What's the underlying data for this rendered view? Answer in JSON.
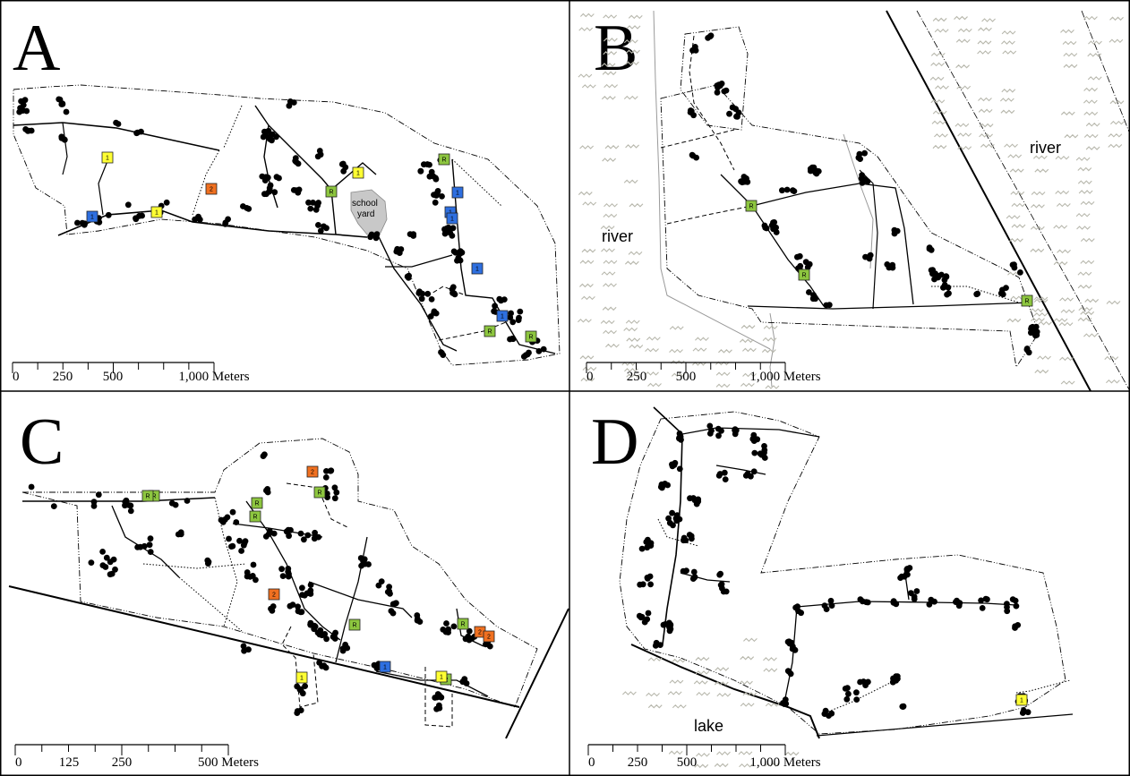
{
  "panels": [
    {
      "id": "A",
      "letter": "A",
      "labels": [
        {
          "text": "school",
          "kind": "feature"
        },
        {
          "text": "yard",
          "kind": "feature"
        }
      ],
      "scalebar": {
        "ticks": [
          "0",
          "250",
          "500"
        ],
        "end_label": "1,000 Meters"
      },
      "markers": [
        {
          "label": "1",
          "color": "#ffff33"
        },
        {
          "label": "1",
          "color": "#ffff33"
        },
        {
          "label": "1",
          "color": "#ffff33"
        },
        {
          "label": "2",
          "color": "#f07020"
        },
        {
          "label": "1",
          "color": "#2e6fe0"
        },
        {
          "label": "1",
          "color": "#2e6fe0"
        },
        {
          "label": "1",
          "color": "#2e6fe0"
        },
        {
          "label": "1",
          "color": "#2e6fe0"
        },
        {
          "label": "1",
          "color": "#2e6fe0"
        },
        {
          "label": "1",
          "color": "#2e6fe0"
        },
        {
          "label": "R",
          "color": "#8dc63f"
        },
        {
          "label": "R",
          "color": "#8dc63f"
        },
        {
          "label": "R",
          "color": "#8dc63f"
        },
        {
          "label": "R",
          "color": "#8dc63f"
        }
      ]
    },
    {
      "id": "B",
      "letter": "B",
      "labels": [
        {
          "text": "river",
          "kind": "water"
        },
        {
          "text": "river",
          "kind": "water"
        }
      ],
      "scalebar": {
        "ticks": [
          "0",
          "250",
          "500"
        ],
        "end_label": "1,000 Meters"
      },
      "markers": [
        {
          "label": "R",
          "color": "#8dc63f"
        },
        {
          "label": "R",
          "color": "#8dc63f"
        },
        {
          "label": "R",
          "color": "#8dc63f"
        }
      ]
    },
    {
      "id": "C",
      "letter": "C",
      "labels": [],
      "scalebar": {
        "ticks": [
          "0",
          "125",
          "250"
        ],
        "end_label": "500 Meters"
      },
      "markers": [
        {
          "label": "R",
          "color": "#8dc63f"
        },
        {
          "label": "R",
          "color": "#8dc63f"
        },
        {
          "label": "R",
          "color": "#8dc63f"
        },
        {
          "label": "R",
          "color": "#8dc63f"
        },
        {
          "label": "R",
          "color": "#8dc63f"
        },
        {
          "label": "R",
          "color": "#8dc63f"
        },
        {
          "label": "R",
          "color": "#8dc63f"
        },
        {
          "label": "R",
          "color": "#8dc63f"
        },
        {
          "label": "2",
          "color": "#f07020"
        },
        {
          "label": "2",
          "color": "#f07020"
        },
        {
          "label": "2",
          "color": "#f07020"
        },
        {
          "label": "2",
          "color": "#f07020"
        },
        {
          "label": "1",
          "color": "#ffff33"
        },
        {
          "label": "1",
          "color": "#ffff33"
        },
        {
          "label": "1",
          "color": "#2e6fe0"
        }
      ]
    },
    {
      "id": "D",
      "letter": "D",
      "labels": [
        {
          "text": "lake",
          "kind": "water"
        }
      ],
      "scalebar": {
        "ticks": [
          "0",
          "250",
          "500"
        ],
        "end_label": "1,000 Meters"
      },
      "markers": [
        {
          "label": "1",
          "color": "#ffff33"
        }
      ]
    }
  ]
}
